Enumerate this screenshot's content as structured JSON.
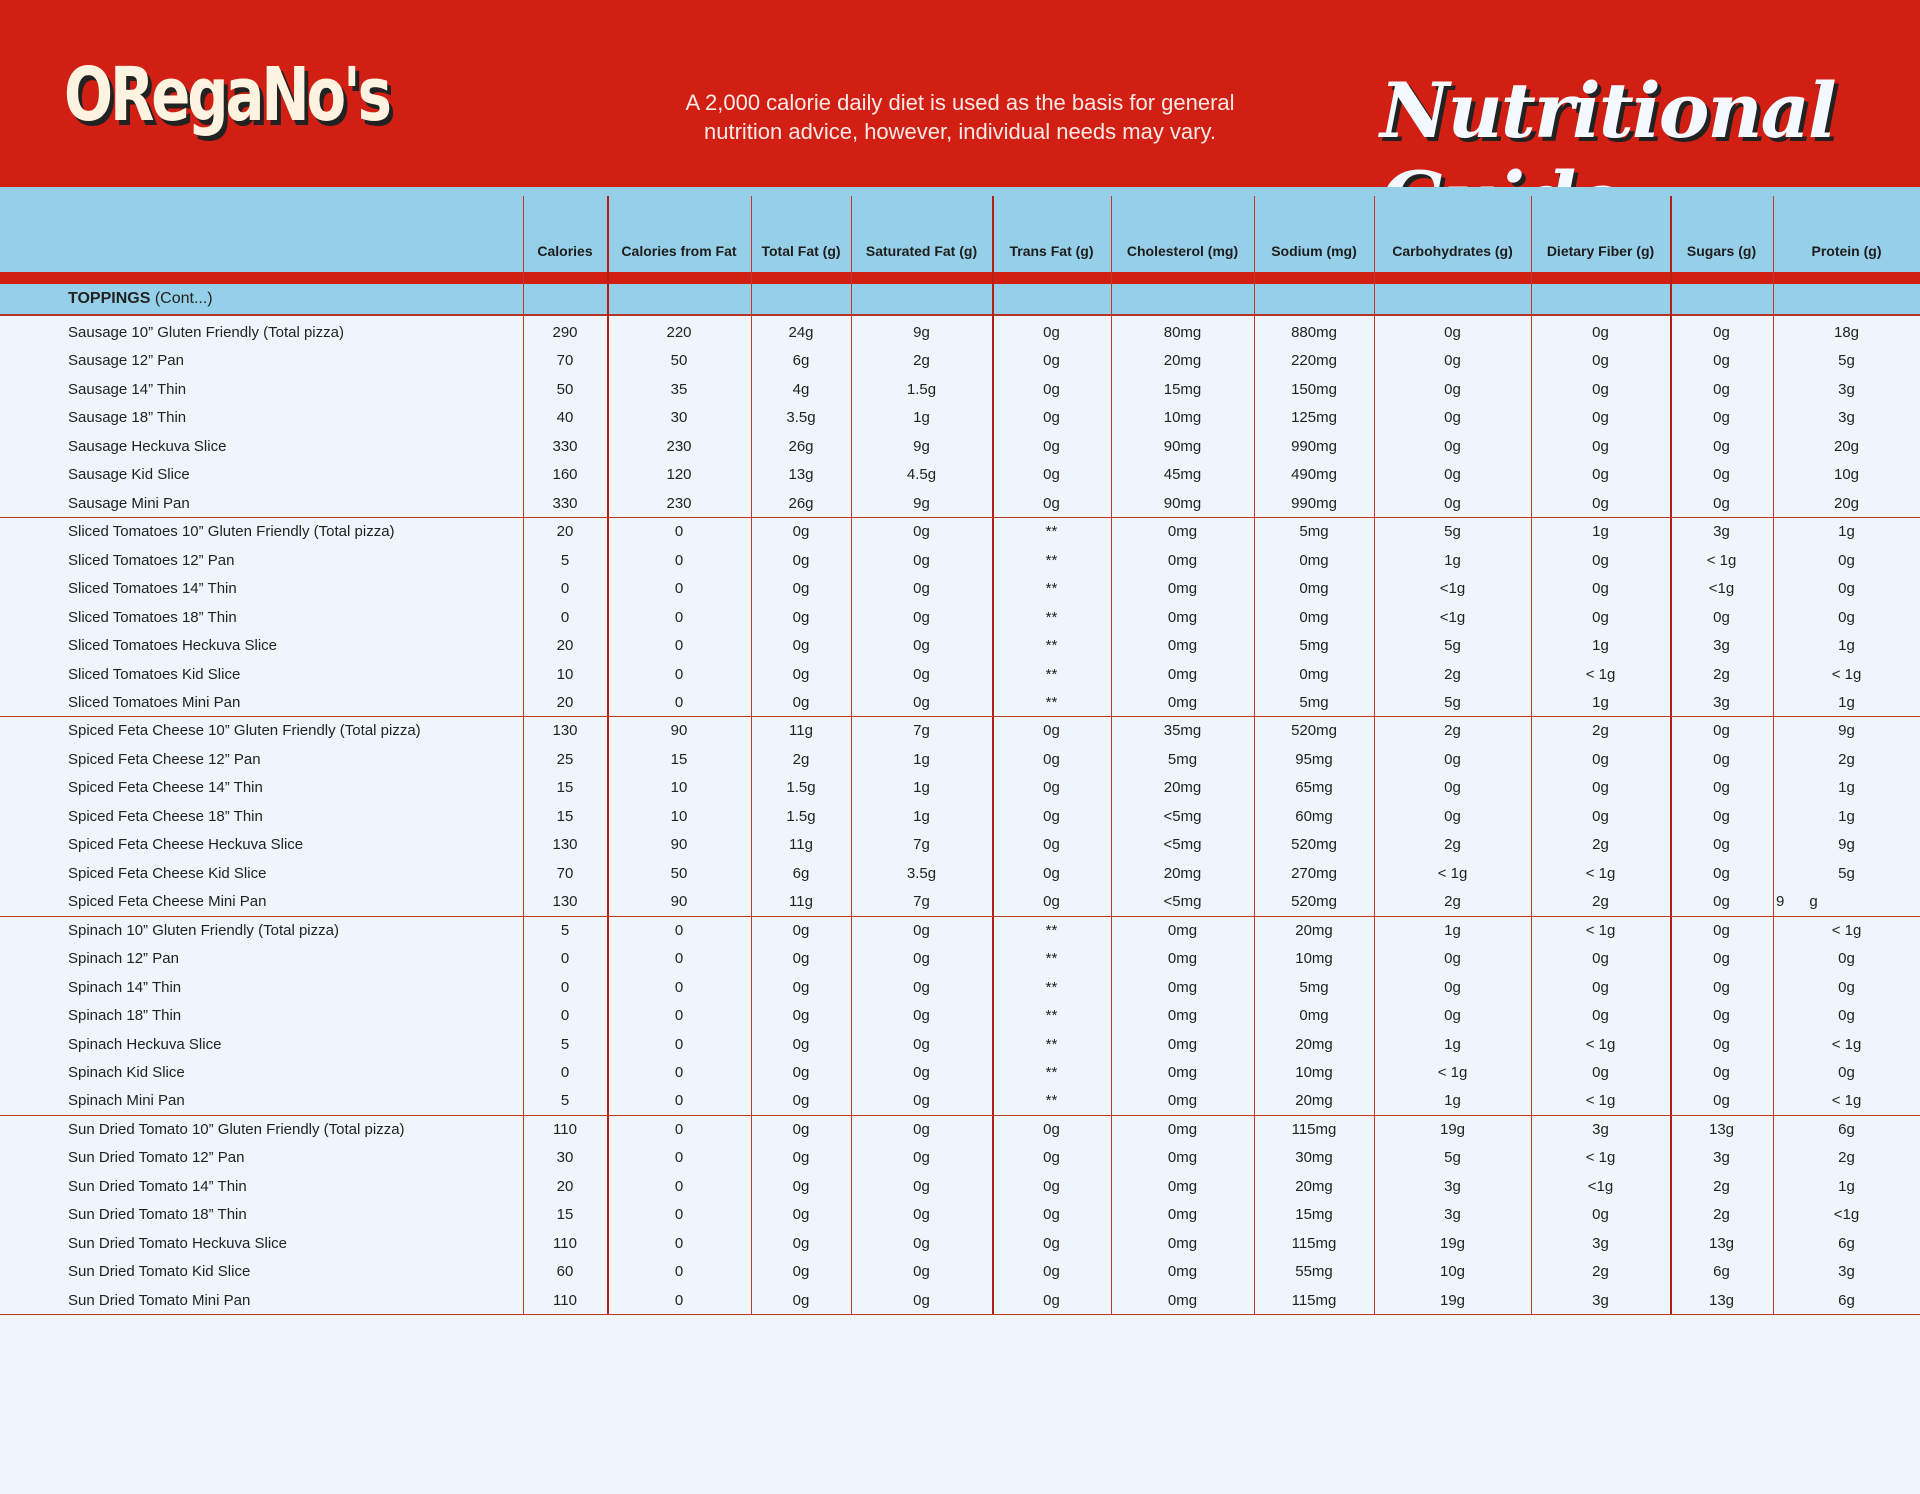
{
  "header": {
    "logo": "ORegaNo's",
    "tagline_line1": "A 2,000 calorie daily diet is used as the basis for general",
    "tagline_line2": "nutrition advice, however, individual needs may vary.",
    "title": "Nutritional Guide",
    "colors": {
      "red": "#d21f13",
      "blue": "#96cfe8",
      "background": "#eef6fc"
    }
  },
  "columns": [
    "Calories",
    "Calories from Fat",
    "Total Fat (g)",
    "Saturated Fat (g)",
    "Trans Fat (g)",
    "Cholesterol (mg)",
    "Sodium (mg)",
    "Carbohydrates (g)",
    "Dietary Fiber (g)",
    "Sugars (g)",
    "Protein (g)"
  ],
  "section": {
    "title": "TOPPINGS",
    "suffix": "(Cont...)"
  },
  "rows": [
    [
      "Sausage 10” Gluten Friendly (Total pizza)",
      "290",
      "220",
      "24g",
      "9g",
      "0g",
      "80mg",
      "880mg",
      "0g",
      "0g",
      "0g",
      "18g"
    ],
    [
      "Sausage 12” Pan",
      "70",
      "50",
      "6g",
      "2g",
      "0g",
      "20mg",
      "220mg",
      "0g",
      "0g",
      "0g",
      "5g"
    ],
    [
      "Sausage 14” Thin",
      "50",
      "35",
      "4g",
      "1.5g",
      "0g",
      "15mg",
      "150mg",
      "0g",
      "0g",
      "0g",
      "3g"
    ],
    [
      "Sausage 18” Thin",
      "40",
      "30",
      "3.5g",
      "1g",
      "0g",
      "10mg",
      "125mg",
      "0g",
      "0g",
      "0g",
      "3g"
    ],
    [
      "Sausage Heckuva Slice",
      "330",
      "230",
      "26g",
      "9g",
      "0g",
      "90mg",
      "990mg",
      "0g",
      "0g",
      "0g",
      "20g"
    ],
    [
      "Sausage Kid Slice",
      "160",
      "120",
      "13g",
      "4.5g",
      "0g",
      "45mg",
      "490mg",
      "0g",
      "0g",
      "0g",
      "10g"
    ],
    [
      "Sausage Mini Pan",
      "330",
      "230",
      "26g",
      "9g",
      "0g",
      "90mg",
      "990mg",
      "0g",
      "0g",
      "0g",
      "20g"
    ],
    [
      "Sliced Tomatoes 10” Gluten Friendly (Total pizza)",
      "20",
      "0",
      "0g",
      "0g",
      "**",
      "0mg",
      "5mg",
      "5g",
      "1g",
      "3g",
      "1g"
    ],
    [
      "Sliced Tomatoes 12” Pan",
      "5",
      "0",
      "0g",
      "0g",
      "**",
      "0mg",
      "0mg",
      "1g",
      "0g",
      "< 1g",
      "0g"
    ],
    [
      "Sliced Tomatoes 14” Thin",
      "0",
      "0",
      "0g",
      "0g",
      "**",
      "0mg",
      "0mg",
      "<1g",
      "0g",
      "<1g",
      "0g"
    ],
    [
      "Sliced Tomatoes 18” Thin",
      "0",
      "0",
      "0g",
      "0g",
      "**",
      "0mg",
      "0mg",
      "<1g",
      "0g",
      "0g",
      "0g"
    ],
    [
      "Sliced Tomatoes Heckuva Slice",
      "20",
      "0",
      "0g",
      "0g",
      "**",
      "0mg",
      "5mg",
      "5g",
      "1g",
      "3g",
      "1g"
    ],
    [
      "Sliced Tomatoes Kid Slice",
      "10",
      "0",
      "0g",
      "0g",
      "**",
      "0mg",
      "0mg",
      "2g",
      "< 1g",
      "2g",
      "< 1g"
    ],
    [
      "Sliced Tomatoes Mini Pan",
      "20",
      "0",
      "0g",
      "0g",
      "**",
      "0mg",
      "5mg",
      "5g",
      "1g",
      "3g",
      "1g"
    ],
    [
      "Spiced Feta Cheese 10” Gluten Friendly (Total pizza)",
      "130",
      "90",
      "11g",
      "7g",
      "0g",
      "35mg",
      "520mg",
      "2g",
      "2g",
      "0g",
      "9g"
    ],
    [
      "Spiced Feta Cheese 12” Pan",
      "25",
      "15",
      "2g",
      "1g",
      "0g",
      "5mg",
      "95mg",
      "0g",
      "0g",
      "0g",
      "2g"
    ],
    [
      "Spiced Feta Cheese 14” Thin",
      "15",
      "10",
      "1.5g",
      "1g",
      "0g",
      "20mg",
      "65mg",
      "0g",
      "0g",
      "0g",
      "1g"
    ],
    [
      "Spiced Feta Cheese 18” Thin",
      "15",
      "10",
      "1.5g",
      "1g",
      "0g",
      "<5mg",
      "60mg",
      "0g",
      "0g",
      "0g",
      "1g"
    ],
    [
      "Spiced Feta Cheese Heckuva Slice",
      "130",
      "90",
      "11g",
      "7g",
      "0g",
      "<5mg",
      "520mg",
      "2g",
      "2g",
      "0g",
      "9g"
    ],
    [
      "Spiced Feta Cheese Kid Slice",
      "70",
      "50",
      "6g",
      "3.5g",
      "0g",
      "20mg",
      "270mg",
      "< 1g",
      "< 1g",
      "0g",
      "5g"
    ],
    [
      "Spiced Feta Cheese Mini Pan",
      "130",
      "90",
      "11g",
      "7g",
      "0g",
      "<5mg",
      "520mg",
      "2g",
      "2g",
      "0g",
      "9      g"
    ],
    [
      "Spinach 10” Gluten Friendly (Total pizza)",
      "5",
      "0",
      "0g",
      "0g",
      "**",
      "0mg",
      "20mg",
      "1g",
      "< 1g",
      "0g",
      "< 1g"
    ],
    [
      "Spinach 12” Pan",
      "0",
      "0",
      "0g",
      "0g",
      "**",
      "0mg",
      "10mg",
      "0g",
      "0g",
      "0g",
      "0g"
    ],
    [
      "Spinach 14” Thin",
      "0",
      "0",
      "0g",
      "0g",
      "**",
      "0mg",
      "5mg",
      "0g",
      "0g",
      "0g",
      "0g"
    ],
    [
      "Spinach 18” Thin",
      "0",
      "0",
      "0g",
      "0g",
      "**",
      "0mg",
      "0mg",
      "0g",
      "0g",
      "0g",
      "0g"
    ],
    [
      "Spinach Heckuva Slice",
      "5",
      "0",
      "0g",
      "0g",
      "**",
      "0mg",
      "20mg",
      "1g",
      "< 1g",
      "0g",
      "< 1g"
    ],
    [
      "Spinach Kid Slice",
      "0",
      "0",
      "0g",
      "0g",
      "**",
      "0mg",
      "10mg",
      "< 1g",
      "0g",
      "0g",
      "0g"
    ],
    [
      "Spinach Mini Pan",
      "5",
      "0",
      "0g",
      "0g",
      "**",
      "0mg",
      "20mg",
      "1g",
      "< 1g",
      "0g",
      "< 1g"
    ],
    [
      "Sun Dried Tomato 10” Gluten Friendly (Total pizza)",
      "110",
      "0",
      "0g",
      "0g",
      "0g",
      "0mg",
      "115mg",
      "19g",
      "3g",
      "13g",
      "6g"
    ],
    [
      "Sun Dried Tomato 12” Pan",
      "30",
      "0",
      "0g",
      "0g",
      "0g",
      "0mg",
      "30mg",
      "5g",
      "< 1g",
      "3g",
      "2g"
    ],
    [
      "Sun Dried Tomato 14” Thin",
      "20",
      "0",
      "0g",
      "0g",
      "0g",
      "0mg",
      "20mg",
      "3g",
      "<1g",
      "2g",
      "1g"
    ],
    [
      "Sun Dried Tomato 18” Thin",
      "15",
      "0",
      "0g",
      "0g",
      "0g",
      "0mg",
      "15mg",
      "3g",
      "0g",
      "2g",
      "<1g"
    ],
    [
      "Sun Dried Tomato Heckuva Slice",
      "110",
      "0",
      "0g",
      "0g",
      "0g",
      "0mg",
      "115mg",
      "19g",
      "3g",
      "13g",
      "6g"
    ],
    [
      "Sun Dried Tomato Kid Slice",
      "60",
      "0",
      "0g",
      "0g",
      "0g",
      "0mg",
      "55mg",
      "10g",
      "2g",
      "6g",
      "3g"
    ],
    [
      "Sun Dried Tomato Mini Pan",
      "110",
      "0",
      "0g",
      "0g",
      "0g",
      "0mg",
      "115mg",
      "19g",
      "3g",
      "13g",
      "6g"
    ]
  ]
}
